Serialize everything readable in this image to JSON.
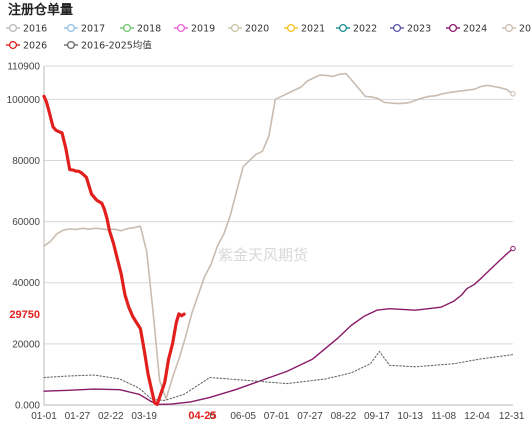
{
  "chart_data": {
    "type": "line",
    "title": "注册仓单量",
    "ylim": [
      0,
      110900
    ],
    "yticks": [
      0,
      20000,
      40000,
      60000,
      80000,
      100000,
      110900
    ],
    "ytick_labels": [
      "0.000",
      "20000",
      "40000",
      "60000",
      "80000",
      "100000",
      "110900"
    ],
    "xlim": [
      1,
      366
    ],
    "xticks": [
      {
        "day": 1,
        "label": "01-01"
      },
      {
        "day": 27,
        "label": "01-27"
      },
      {
        "day": 53,
        "label": "02-22"
      },
      {
        "day": 79,
        "label": "03-19"
      },
      {
        "day": 115,
        "label": "04-25"
      },
      {
        "day": 132,
        "label": "0"
      },
      {
        "day": 156,
        "label": "06-05"
      },
      {
        "day": 182,
        "label": "07-01"
      },
      {
        "day": 208,
        "label": "07-27"
      },
      {
        "day": 234,
        "label": "08-22"
      },
      {
        "day": 260,
        "label": "09-17"
      },
      {
        "day": 286,
        "label": "10-13"
      },
      {
        "day": 312,
        "label": "11-08"
      },
      {
        "day": 338,
        "label": "12-04"
      },
      {
        "day": 365,
        "label": "12-31"
      }
    ],
    "highlight": {
      "x_label": "04-25",
      "y_label": "29750",
      "y_value": 29750
    },
    "watermark": "紫金天风期货",
    "legend": [
      {
        "name": "2016",
        "color": "#b8b8b8"
      },
      {
        "name": "2017",
        "color": "#8fc0e8"
      },
      {
        "name": "2018",
        "color": "#6cc66a"
      },
      {
        "name": "2019",
        "color": "#ee5fd3"
      },
      {
        "name": "2020",
        "color": "#c9c2a2"
      },
      {
        "name": "2021",
        "color": "#f1c11f"
      },
      {
        "name": "2022",
        "color": "#1a8f8f"
      },
      {
        "name": "2023",
        "color": "#5a54a8"
      },
      {
        "name": "2024",
        "color": "#8a1a6a"
      },
      {
        "name": "2025",
        "color": "#c9bcb0"
      },
      {
        "name": "2026",
        "color": "#e1201e"
      },
      {
        "name": "2016-2025均值",
        "color": "#6a6a6a"
      }
    ],
    "series": [
      {
        "name": "2025",
        "color": "#c9bcb0",
        "width": 1.6,
        "x": [
          1,
          6,
          11,
          16,
          21,
          26,
          31,
          36,
          41,
          46,
          51,
          56,
          61,
          66,
          71,
          76,
          81,
          86,
          91,
          96,
          101,
          106,
          111,
          116,
          121,
          126,
          131,
          136,
          141,
          146,
          151,
          156,
          161,
          166,
          171,
          176,
          181,
          186,
          191,
          196,
          201,
          206,
          211,
          216,
          221,
          226,
          231,
          236,
          241,
          246,
          251,
          256,
          261,
          266,
          271,
          276,
          281,
          286,
          291,
          296,
          301,
          306,
          311,
          316,
          321,
          326,
          331,
          336,
          341,
          346,
          351,
          356,
          361,
          366
        ],
        "y": [
          52000,
          53500,
          56000,
          57200,
          57600,
          57400,
          57800,
          57500,
          57800,
          57600,
          57300,
          57500,
          57000,
          57700,
          58000,
          58500,
          50000,
          30000,
          8000,
          2000,
          9000,
          15000,
          22000,
          30000,
          36000,
          42000,
          46000,
          52000,
          56000,
          62000,
          70000,
          78000,
          80000,
          82000,
          83000,
          88000,
          100000,
          101000,
          102000,
          103000,
          104000,
          106000,
          107000,
          108000,
          107800,
          107500,
          108200,
          108400,
          106000,
          103500,
          101000,
          100800,
          100200,
          99000,
          98800,
          98600,
          98700,
          99000,
          99800,
          100500,
          101000,
          101200,
          101800,
          102200,
          102500,
          102800,
          103000,
          103300,
          104200,
          104600,
          104200,
          103800,
          103200,
          101800
        ]
      },
      {
        "name": "2024",
        "color": "#8a1a6a",
        "width": 1.4,
        "x": [
          1,
          20,
          40,
          60,
          75,
          85,
          90,
          100,
          115,
          130,
          150,
          170,
          190,
          210,
          230,
          240,
          250,
          260,
          270,
          290,
          300,
          310,
          320,
          326,
          330,
          336,
          340,
          350,
          360,
          366
        ],
        "y": [
          4500,
          4800,
          5200,
          5000,
          3500,
          1000,
          200,
          300,
          1000,
          2500,
          5000,
          8000,
          11000,
          15000,
          22000,
          26000,
          29000,
          31000,
          31500,
          31000,
          31500,
          32000,
          34000,
          36000,
          38000,
          39500,
          41000,
          45000,
          49000,
          51200
        ]
      },
      {
        "name": "2016-2025均值",
        "color": "#6a6a6a",
        "width": 1.1,
        "dash": "1.5,2",
        "x": [
          1,
          20,
          40,
          60,
          75,
          85,
          95,
          110,
          130,
          160,
          190,
          220,
          240,
          255,
          262,
          270,
          290,
          320,
          340,
          366
        ],
        "y": [
          9000,
          9500,
          9800,
          8500,
          5500,
          1800,
          1500,
          3500,
          9000,
          8000,
          7000,
          8500,
          10500,
          13500,
          17500,
          13000,
          12500,
          13500,
          15000,
          16500
        ]
      },
      {
        "name": "2026",
        "color": "#e1201e",
        "width": 3.2,
        "x": [
          1,
          3,
          5,
          8,
          10,
          12,
          15,
          18,
          21,
          24,
          26,
          28,
          30,
          34,
          38,
          42,
          46,
          48,
          50,
          52,
          55,
          58,
          61,
          64,
          67,
          70,
          73,
          76,
          79,
          82,
          85,
          87,
          89,
          91,
          93,
          95,
          98,
          101,
          104,
          106,
          108,
          110
        ],
        "y": [
          101000,
          99000,
          96000,
          91000,
          90000,
          89500,
          89000,
          84000,
          77000,
          76800,
          76500,
          76500,
          76000,
          74500,
          69000,
          67000,
          66000,
          64000,
          61000,
          57000,
          53000,
          48000,
          43000,
          36000,
          32000,
          29000,
          27000,
          25000,
          18000,
          10000,
          4500,
          800,
          200,
          2500,
          5000,
          7500,
          15000,
          20000,
          27000,
          29800,
          29200,
          29750
        ]
      }
    ]
  }
}
